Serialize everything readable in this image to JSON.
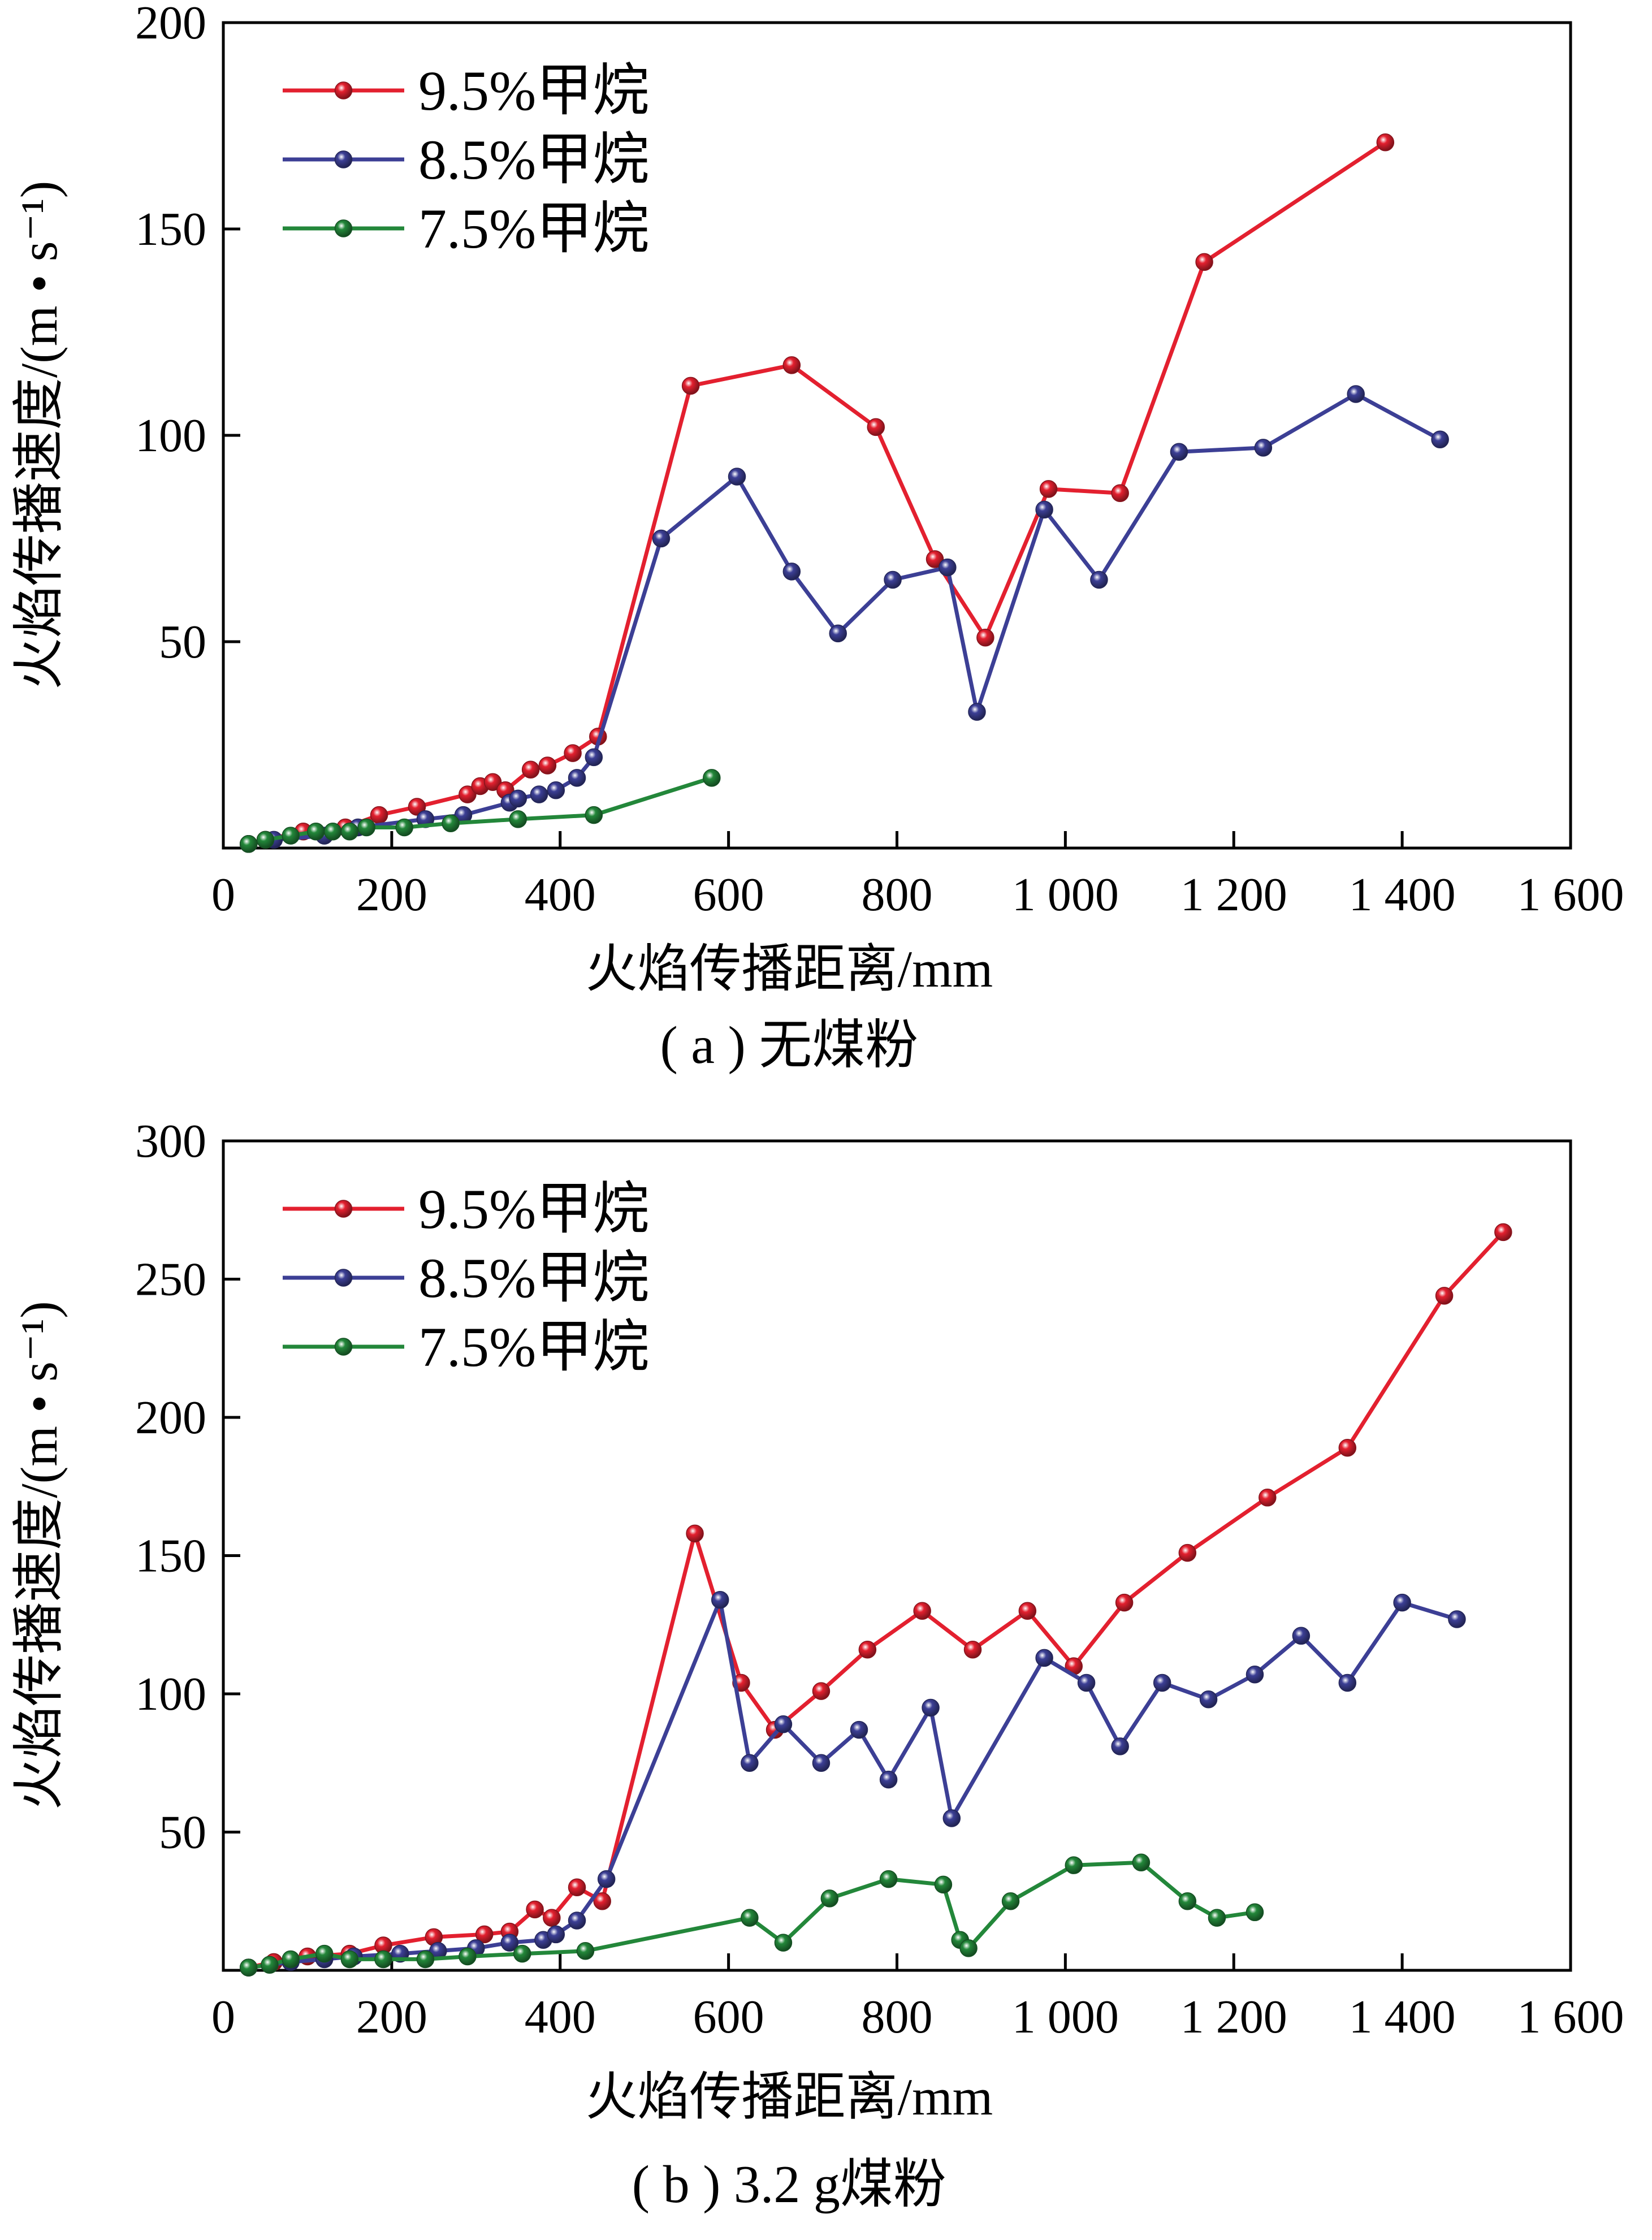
{
  "colors": {
    "red": "#e3202f",
    "blue": "#3c3f95",
    "green": "#23873a"
  },
  "chart_data": [
    {
      "type": "line",
      "caption": "( a ) 无煤粉",
      "xlabel": "火焰传播距离/mm",
      "ylabel": "火焰传播速度/(m • s⁻¹)",
      "xlim": [
        0,
        1600
      ],
      "ylim": [
        0,
        200
      ],
      "xticks": [
        {
          "v": 0,
          "label": "0"
        },
        {
          "v": 200,
          "label": "200"
        },
        {
          "v": 400,
          "label": "400"
        },
        {
          "v": 600,
          "label": "600"
        },
        {
          "v": 800,
          "label": "800"
        },
        {
          "v": 1000,
          "label": "1 000"
        },
        {
          "v": 1200,
          "label": "1 200"
        },
        {
          "v": 1400,
          "label": "1 400"
        },
        {
          "v": 1600,
          "label": "1 600"
        }
      ],
      "yticks": [
        {
          "v": 50,
          "label": "50"
        },
        {
          "v": 100,
          "label": "100"
        },
        {
          "v": 150,
          "label": "150"
        },
        {
          "v": 200,
          "label": "200"
        }
      ],
      "grid": false,
      "legend": "top-left",
      "series": [
        {
          "name": "9.5%甲烷",
          "color": "red",
          "x": [
            30,
            50,
            95,
            145,
            185,
            230,
            290,
            305,
            320,
            335,
            365,
            385,
            415,
            445,
            555,
            675,
            775,
            845,
            905,
            980,
            1065,
            1165,
            1380
          ],
          "y": [
            1,
            2,
            4,
            5,
            8,
            10,
            13,
            15,
            16,
            14,
            19,
            20,
            23,
            27,
            112,
            117,
            102,
            70,
            51,
            87,
            86,
            142,
            171
          ]
        },
        {
          "name": "8.5%甲烷",
          "color": "blue",
          "x": [
            30,
            60,
            120,
            160,
            240,
            285,
            340,
            350,
            375,
            395,
            420,
            440,
            520,
            610,
            675,
            730,
            795,
            860,
            895,
            975,
            1040,
            1135,
            1235,
            1345,
            1445
          ],
          "y": [
            1,
            2,
            3,
            5,
            7,
            8,
            11,
            12,
            13,
            14,
            17,
            22,
            75,
            90,
            67,
            52,
            65,
            68,
            33,
            82,
            65,
            96,
            97,
            110,
            99
          ]
        },
        {
          "name": "7.5%甲烷",
          "color": "green",
          "x": [
            30,
            50,
            80,
            110,
            130,
            150,
            170,
            215,
            270,
            350,
            440,
            580
          ],
          "y": [
            1,
            2,
            3,
            4,
            4,
            4,
            5,
            5,
            6,
            7,
            8,
            17
          ]
        }
      ]
    },
    {
      "type": "line",
      "caption": "( b ) 3.2 g煤粉",
      "xlabel": "火焰传播距离/mm",
      "ylabel": "火焰传播速度/(m • s⁻¹)",
      "xlim": [
        0,
        1600
      ],
      "ylim": [
        0,
        300
      ],
      "xticks": [
        {
          "v": 0,
          "label": "0"
        },
        {
          "v": 200,
          "label": "200"
        },
        {
          "v": 400,
          "label": "400"
        },
        {
          "v": 600,
          "label": "600"
        },
        {
          "v": 800,
          "label": "800"
        },
        {
          "v": 1000,
          "label": "1 000"
        },
        {
          "v": 1200,
          "label": "1 200"
        },
        {
          "v": 1400,
          "label": "1 400"
        },
        {
          "v": 1600,
          "label": "1 600"
        }
      ],
      "yticks": [
        {
          "v": 50,
          "label": "50"
        },
        {
          "v": 100,
          "label": "100"
        },
        {
          "v": 150,
          "label": "150"
        },
        {
          "v": 200,
          "label": "200"
        },
        {
          "v": 250,
          "label": "250"
        },
        {
          "v": 300,
          "label": "300"
        }
      ],
      "grid": false,
      "legend": "top-left",
      "series": [
        {
          "name": "9.5%甲烷",
          "color": "red",
          "x": [
            30,
            60,
            100,
            150,
            190,
            250,
            310,
            340,
            370,
            390,
            420,
            450,
            560,
            615,
            655,
            710,
            765,
            830,
            890,
            955,
            1010,
            1070,
            1145,
            1240,
            1335,
            1450,
            1520
          ],
          "y": [
            1,
            3,
            5,
            6,
            9,
            12,
            13,
            14,
            22,
            19,
            30,
            25,
            158,
            104,
            87,
            101,
            116,
            130,
            116,
            130,
            110,
            133,
            151,
            171,
            189,
            244,
            267
          ]
        },
        {
          "name": "8.5%甲烷",
          "color": "blue",
          "x": [
            30,
            80,
            120,
            155,
            210,
            255,
            300,
            340,
            380,
            395,
            420,
            455,
            590,
            625,
            665,
            710,
            755,
            790,
            840,
            865,
            975,
            1025,
            1065,
            1115,
            1170,
            1225,
            1280,
            1335,
            1400,
            1465
          ],
          "y": [
            1,
            3,
            4,
            5,
            6,
            7,
            8,
            10,
            11,
            13,
            18,
            33,
            134,
            75,
            89,
            75,
            87,
            69,
            95,
            55,
            113,
            104,
            81,
            104,
            98,
            107,
            121,
            104,
            133,
            127
          ]
        },
        {
          "name": "7.5%甲烷",
          "color": "green",
          "x": [
            30,
            55,
            80,
            120,
            150,
            190,
            240,
            290,
            355,
            430,
            625,
            665,
            720,
            790,
            855,
            875,
            885,
            935,
            1010,
            1090,
            1145,
            1180,
            1225
          ],
          "y": [
            1,
            2,
            4,
            6,
            4,
            4,
            4,
            5,
            6,
            7,
            19,
            10,
            26,
            33,
            31,
            11,
            8,
            25,
            38,
            39,
            25,
            19,
            21
          ]
        }
      ]
    }
  ]
}
